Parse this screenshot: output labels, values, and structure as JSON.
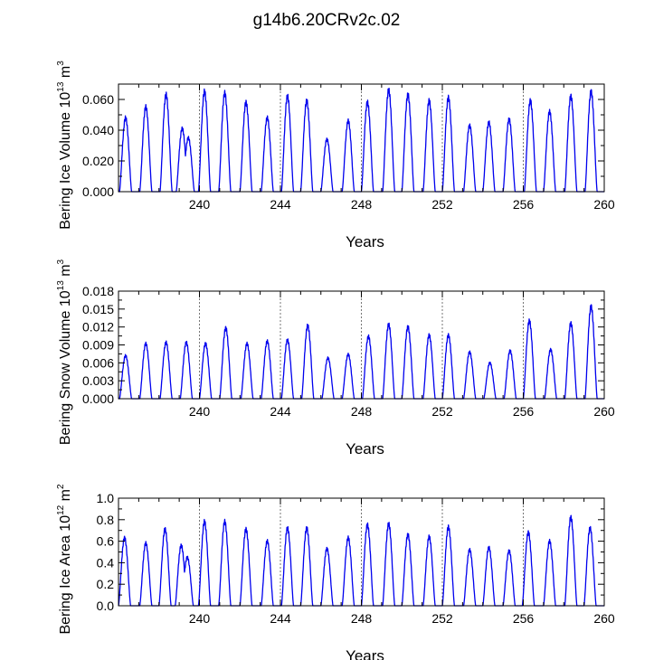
{
  "page_title": "g14b6.20CRv2c.02",
  "colors": {
    "series": "#0000ee",
    "axis": "#000000",
    "divider": "#555555"
  },
  "chart_data": [
    {
      "type": "line",
      "ylabel": {
        "base": "Bering Ice Volume 10",
        "exp": "13",
        "unit": " m",
        "unit_exp": "3"
      },
      "xlabel": "Years",
      "xlim": [
        236,
        260
      ],
      "ylim": [
        0,
        0.07
      ],
      "xticks": [
        240,
        244,
        248,
        252,
        256,
        260
      ],
      "yticks": [
        0.0,
        0.02,
        0.04,
        0.06
      ],
      "ytick_labels": [
        "0.000",
        "0.020",
        "0.040",
        "0.060"
      ],
      "divider_years": [
        240,
        244,
        248,
        252,
        256
      ],
      "grid": false,
      "series": [
        {
          "peaks": [
            [
              236.35,
              0.048
            ],
            [
              237.35,
              0.055
            ],
            [
              238.35,
              0.063
            ],
            [
              239.15,
              0.041
            ],
            [
              239.45,
              0.035
            ],
            [
              240.25,
              0.065
            ],
            [
              241.25,
              0.064
            ],
            [
              242.3,
              0.058
            ],
            [
              243.35,
              0.048
            ],
            [
              244.35,
              0.062
            ],
            [
              245.3,
              0.059
            ],
            [
              246.3,
              0.034
            ],
            [
              247.35,
              0.046
            ],
            [
              248.3,
              0.058
            ],
            [
              249.35,
              0.066
            ],
            [
              250.3,
              0.063
            ],
            [
              251.35,
              0.059
            ],
            [
              252.3,
              0.061
            ],
            [
              253.35,
              0.043
            ],
            [
              254.3,
              0.045
            ],
            [
              255.3,
              0.047
            ],
            [
              256.35,
              0.059
            ],
            [
              257.3,
              0.052
            ],
            [
              258.35,
              0.062
            ],
            [
              259.35,
              0.065
            ]
          ]
        }
      ]
    },
    {
      "type": "line",
      "ylabel": {
        "base": "Bering Snow Volume 10",
        "exp": "13",
        "unit": " m",
        "unit_exp": "3"
      },
      "xlabel": "Years",
      "xlim": [
        236,
        260
      ],
      "ylim": [
        0,
        0.018
      ],
      "xticks": [
        240,
        244,
        248,
        252,
        256,
        260
      ],
      "yticks": [
        0.0,
        0.003,
        0.006,
        0.009,
        0.012,
        0.015,
        0.018
      ],
      "ytick_labels": [
        "0.000",
        "0.003",
        "0.006",
        "0.009",
        "0.012",
        "0.015",
        "0.018"
      ],
      "divider_years": [
        240,
        244,
        248,
        252,
        256
      ],
      "grid": false,
      "series": [
        {
          "peaks": [
            [
              236.35,
              0.0072
            ],
            [
              237.35,
              0.0092
            ],
            [
              238.35,
              0.0094
            ],
            [
              239.35,
              0.0094
            ],
            [
              240.3,
              0.0092
            ],
            [
              241.3,
              0.0118
            ],
            [
              242.35,
              0.0092
            ],
            [
              243.35,
              0.0096
            ],
            [
              244.35,
              0.0098
            ],
            [
              245.35,
              0.0122
            ],
            [
              246.35,
              0.0068
            ],
            [
              247.35,
              0.0074
            ],
            [
              248.35,
              0.0104
            ],
            [
              249.35,
              0.0124
            ],
            [
              250.3,
              0.012
            ],
            [
              251.35,
              0.0106
            ],
            [
              252.3,
              0.0106
            ],
            [
              253.35,
              0.0078
            ],
            [
              254.35,
              0.006
            ],
            [
              255.35,
              0.008
            ],
            [
              256.3,
              0.013
            ],
            [
              257.35,
              0.0082
            ],
            [
              258.35,
              0.0126
            ],
            [
              259.35,
              0.0154
            ]
          ]
        }
      ]
    },
    {
      "type": "line",
      "ylabel": {
        "base": "Bering Ice Area 10",
        "exp": "12",
        "unit": " m",
        "unit_exp": "2"
      },
      "xlabel": "Years",
      "xlim": [
        236,
        260
      ],
      "ylim": [
        0,
        1.0
      ],
      "xticks": [
        240,
        244,
        248,
        252,
        256,
        260
      ],
      "yticks": [
        0.0,
        0.2,
        0.4,
        0.6,
        0.8,
        1.0
      ],
      "ytick_labels": [
        "0.0",
        "0.2",
        "0.4",
        "0.6",
        "0.8",
        "1.0"
      ],
      "divider_years": [
        240,
        244,
        248,
        252,
        256
      ],
      "grid": false,
      "series": [
        {
          "peaks": [
            [
              236.3,
              0.63
            ],
            [
              237.35,
              0.58
            ],
            [
              238.3,
              0.71
            ],
            [
              239.1,
              0.56
            ],
            [
              239.4,
              0.45
            ],
            [
              240.25,
              0.78
            ],
            [
              241.25,
              0.78
            ],
            [
              242.3,
              0.71
            ],
            [
              243.35,
              0.6
            ],
            [
              244.35,
              0.72
            ],
            [
              245.3,
              0.72
            ],
            [
              246.3,
              0.53
            ],
            [
              247.35,
              0.63
            ],
            [
              248.3,
              0.75
            ],
            [
              249.35,
              0.76
            ],
            [
              250.3,
              0.66
            ],
            [
              251.35,
              0.64
            ],
            [
              252.3,
              0.73
            ],
            [
              253.35,
              0.52
            ],
            [
              254.3,
              0.54
            ],
            [
              255.3,
              0.51
            ],
            [
              256.25,
              0.68
            ],
            [
              257.3,
              0.6
            ],
            [
              258.35,
              0.82
            ],
            [
              259.3,
              0.72
            ]
          ]
        }
      ]
    }
  ]
}
